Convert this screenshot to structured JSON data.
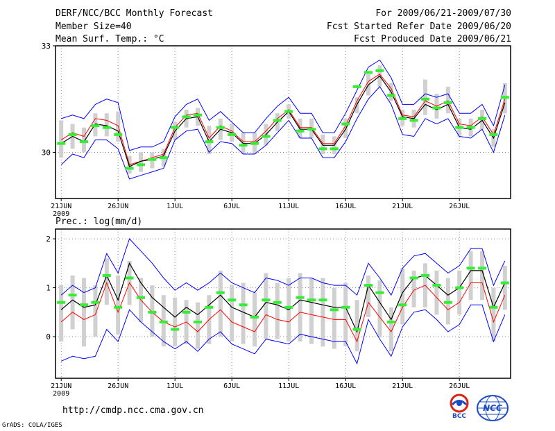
{
  "header": {
    "title": "DERF/NCC/BCC Monthly Forecast",
    "member_size": "Member Size=40",
    "panel1_var": "Mean Surf. Temp.: °C",
    "forecast_range": "For 2009/06/21-2009/07/30",
    "fcst_started": "Fcst Started Refer Date 2009/06/20",
    "fcst_produced": "Fcst Produced Date 2009/06/21"
  },
  "footer": {
    "url": "http://cmdp.ncc.cma.gov.cn",
    "credit": "GrADS: COLA/IGES",
    "logo1_text": "BCC",
    "logo2_text": "NCC"
  },
  "colors": {
    "envelope": "#0000ff",
    "mean": "#000000",
    "median": "#ff0000",
    "obs": "#33ee33",
    "box": "#d0d0d0",
    "grid": "#888888"
  },
  "chart_data": [
    {
      "type": "line",
      "title": "Mean Surf. Temp.: °C",
      "x_tick_labels": [
        "21JUN",
        "26JUN",
        "1JUL",
        "6JUL",
        "11JUL",
        "16JUL",
        "21JUL",
        "26JUL"
      ],
      "x_tick_days": [
        1,
        6,
        11,
        16,
        21,
        26,
        31,
        36
      ],
      "year_label": "2009",
      "y_tick_labels": [
        "30",
        "33"
      ],
      "y_ticks": [
        30,
        33
      ],
      "ylim": [
        28.7,
        33
      ],
      "xlim": [
        0.5,
        40.5
      ],
      "series": [
        {
          "name": "mean",
          "values": [
            30.25,
            30.45,
            30.3,
            30.8,
            30.75,
            30.6,
            29.6,
            29.75,
            29.8,
            29.9,
            30.6,
            30.95,
            31.0,
            30.3,
            30.65,
            30.55,
            30.25,
            30.25,
            30.5,
            30.85,
            31.15,
            30.65,
            30.65,
            30.2,
            30.2,
            30.65,
            31.35,
            31.9,
            32.15,
            31.7,
            31.0,
            30.95,
            31.35,
            31.2,
            31.35,
            30.7,
            30.65,
            30.9,
            30.4,
            31.4
          ]
        },
        {
          "name": "median",
          "values": [
            30.35,
            30.55,
            30.45,
            30.95,
            30.9,
            30.75,
            29.65,
            29.75,
            29.85,
            29.95,
            30.7,
            31.05,
            31.1,
            30.4,
            30.75,
            30.6,
            30.3,
            30.3,
            30.6,
            30.95,
            31.2,
            30.7,
            30.7,
            30.25,
            30.25,
            30.75,
            31.45,
            32.0,
            32.2,
            31.8,
            31.05,
            31.0,
            31.45,
            31.3,
            31.45,
            30.8,
            30.75,
            31.0,
            30.5,
            31.5
          ]
        },
        {
          "name": "upper",
          "values": [
            30.95,
            31.05,
            30.95,
            31.35,
            31.5,
            31.4,
            30.05,
            30.15,
            30.15,
            30.3,
            31.0,
            31.35,
            31.5,
            30.9,
            31.15,
            30.85,
            30.55,
            30.55,
            30.95,
            31.3,
            31.55,
            31.1,
            31.1,
            30.55,
            30.55,
            31.1,
            31.75,
            32.4,
            32.6,
            32.1,
            31.35,
            31.35,
            31.65,
            31.55,
            31.65,
            31.1,
            31.1,
            31.35,
            30.75,
            31.9
          ]
        },
        {
          "name": "lower",
          "values": [
            29.65,
            29.95,
            29.85,
            30.35,
            30.35,
            30.1,
            29.25,
            29.35,
            29.45,
            29.55,
            30.35,
            30.6,
            30.65,
            30.0,
            30.3,
            30.25,
            29.95,
            29.95,
            30.2,
            30.55,
            30.9,
            30.4,
            30.4,
            29.85,
            29.85,
            30.3,
            30.95,
            31.5,
            31.85,
            31.35,
            30.5,
            30.45,
            30.95,
            30.8,
            30.95,
            30.45,
            30.4,
            30.65,
            30.0,
            31.05
          ]
        },
        {
          "name": "obs",
          "values": [
            30.25,
            30.5,
            30.3,
            30.75,
            30.7,
            30.5,
            29.55,
            29.65,
            29.8,
            29.85,
            30.7,
            31.0,
            31.05,
            30.3,
            30.7,
            30.5,
            30.2,
            30.25,
            30.45,
            30.9,
            31.15,
            30.6,
            30.65,
            30.1,
            30.1,
            30.8,
            31.85,
            32.25,
            32.3,
            31.6,
            30.95,
            30.9,
            31.5,
            31.25,
            31.4,
            30.7,
            30.7,
            30.95,
            30.5,
            31.55
          ]
        },
        {
          "name": "box_top",
          "values": [
            30.9,
            30.8,
            30.7,
            31.1,
            31.1,
            31.15,
            29.9,
            30.0,
            30.0,
            30.1,
            30.85,
            31.2,
            31.25,
            30.75,
            30.95,
            30.8,
            30.55,
            30.55,
            30.8,
            31.1,
            31.35,
            30.95,
            30.95,
            30.5,
            30.45,
            30.95,
            31.55,
            32.2,
            32.45,
            31.95,
            31.2,
            31.2,
            32.05,
            31.65,
            31.85,
            30.95,
            30.95,
            31.2,
            30.65,
            31.95
          ]
        },
        {
          "name": "box_bottom",
          "values": [
            29.85,
            30.1,
            30.0,
            30.45,
            30.45,
            30.3,
            29.4,
            29.45,
            29.55,
            29.6,
            30.35,
            30.7,
            30.75,
            29.95,
            30.35,
            30.3,
            29.95,
            29.95,
            30.2,
            30.6,
            30.95,
            30.4,
            30.4,
            29.95,
            29.95,
            30.4,
            31.1,
            31.6,
            31.85,
            31.45,
            30.75,
            30.7,
            31.05,
            30.95,
            31.1,
            30.45,
            30.45,
            30.65,
            30.15,
            31.1
          ]
        }
      ]
    },
    {
      "type": "line",
      "title": "Prec.: log(mm/d)",
      "x_tick_labels": [
        "21JUN",
        "26JUN",
        "1JUL",
        "6JUL",
        "11JUL",
        "16JUL",
        "21JUL",
        "26JUL"
      ],
      "x_tick_days": [
        1,
        6,
        11,
        16,
        21,
        26,
        31,
        36
      ],
      "year_label": "2009",
      "y_tick_labels": [
        "0",
        "1",
        "2"
      ],
      "y_ticks": [
        0,
        1,
        2
      ],
      "ylim": [
        -0.85,
        2.2
      ],
      "xlim": [
        0.5,
        40.5
      ],
      "series": [
        {
          "name": "mean",
          "values": [
            0.55,
            0.75,
            0.6,
            0.65,
            1.25,
            0.75,
            1.5,
            1.1,
            0.8,
            0.6,
            0.4,
            0.6,
            0.45,
            0.65,
            0.85,
            0.6,
            0.5,
            0.4,
            0.7,
            0.65,
            0.55,
            0.75,
            0.7,
            0.65,
            0.6,
            0.6,
            0.1,
            1.05,
            0.7,
            0.35,
            0.9,
            1.2,
            1.25,
            1.05,
            0.85,
            1.0,
            1.35,
            1.35,
            0.6,
            1.1
          ]
        },
        {
          "name": "median",
          "values": [
            0.3,
            0.5,
            0.35,
            0.45,
            1.1,
            0.5,
            1.1,
            0.75,
            0.5,
            0.3,
            0.2,
            0.3,
            0.1,
            0.35,
            0.55,
            0.3,
            0.2,
            0.1,
            0.45,
            0.35,
            0.3,
            0.5,
            0.45,
            0.4,
            0.35,
            0.35,
            -0.1,
            0.7,
            0.4,
            0.1,
            0.6,
            0.95,
            1.05,
            0.8,
            0.55,
            0.7,
            1.1,
            1.1,
            0.3,
            0.85
          ]
        },
        {
          "name": "upper",
          "values": [
            0.85,
            1.05,
            0.9,
            1.0,
            1.7,
            1.3,
            2.0,
            1.75,
            1.5,
            1.2,
            0.95,
            1.1,
            0.95,
            1.1,
            1.3,
            1.1,
            1.0,
            0.9,
            1.2,
            1.15,
            1.05,
            1.2,
            1.2,
            1.1,
            1.05,
            1.05,
            0.85,
            1.5,
            1.2,
            0.85,
            1.4,
            1.65,
            1.7,
            1.5,
            1.3,
            1.45,
            1.8,
            1.8,
            1.05,
            1.55
          ]
        },
        {
          "name": "lower",
          "values": [
            -0.5,
            -0.4,
            -0.45,
            -0.4,
            0.15,
            -0.1,
            0.55,
            0.3,
            0.1,
            -0.1,
            -0.25,
            -0.1,
            -0.3,
            -0.05,
            0.1,
            -0.15,
            -0.25,
            -0.35,
            -0.05,
            -0.1,
            -0.15,
            0.05,
            0.0,
            -0.05,
            -0.1,
            -0.1,
            -0.55,
            0.35,
            -0.05,
            -0.4,
            0.2,
            0.5,
            0.55,
            0.35,
            0.1,
            0.25,
            0.65,
            0.65,
            -0.1,
            0.45
          ]
        },
        {
          "name": "obs",
          "values": [
            0.7,
            0.85,
            0.65,
            0.7,
            1.25,
            0.6,
            1.2,
            0.8,
            0.5,
            0.3,
            0.15,
            0.5,
            0.3,
            0.6,
            0.9,
            0.75,
            0.65,
            0.4,
            0.75,
            0.7,
            0.6,
            0.8,
            0.75,
            0.75,
            0.55,
            0.6,
            0.15,
            1.05,
            0.9,
            0.3,
            0.65,
            1.2,
            1.25,
            1.05,
            0.7,
            1.0,
            1.4,
            1.4,
            0.6,
            1.1
          ]
        },
        {
          "name": "box_top",
          "values": [
            1.05,
            1.25,
            1.2,
            1.05,
            1.6,
            1.25,
            1.55,
            1.2,
            1.05,
            0.85,
            0.8,
            0.75,
            0.7,
            0.85,
            1.35,
            1.05,
            1.1,
            0.9,
            1.3,
            1.1,
            1.2,
            1.3,
            1.2,
            1.2,
            1.0,
            1.1,
            0.75,
            1.25,
            1.15,
            0.6,
            1.4,
            1.35,
            1.5,
            1.35,
            1.2,
            1.35,
            1.75,
            1.75,
            1.0,
            1.45
          ]
        },
        {
          "name": "box_bottom",
          "values": [
            -0.1,
            0.15,
            -0.2,
            0.0,
            0.65,
            0.05,
            0.65,
            0.3,
            0.0,
            -0.2,
            -0.2,
            -0.15,
            -0.25,
            -0.15,
            0.0,
            -0.1,
            -0.15,
            -0.2,
            -0.05,
            -0.05,
            -0.1,
            -0.1,
            -0.15,
            -0.2,
            -0.25,
            -0.2,
            -0.3,
            0.4,
            0.0,
            -0.3,
            0.25,
            0.6,
            0.6,
            0.45,
            0.25,
            0.45,
            0.75,
            0.75,
            -0.1,
            0.55
          ]
        }
      ]
    }
  ]
}
